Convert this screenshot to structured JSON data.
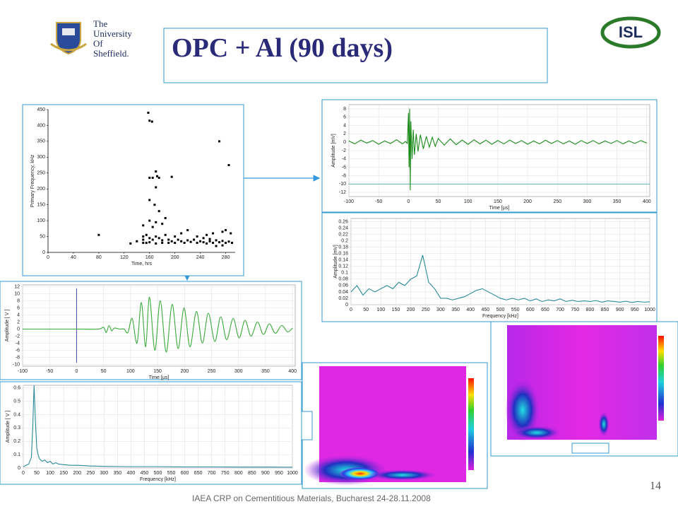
{
  "header": {
    "title": "OPC + Al (90 days)",
    "logo_lines": [
      "The",
      "University",
      "Of",
      "Sheffield."
    ],
    "right_logo": "ISL"
  },
  "footer": {
    "text": "IAEA CRP on Cementitious Materials, Bucharest 24-28.11.2008",
    "page": "14"
  },
  "chart_data": [
    {
      "type": "scatter",
      "xlabel": "Time, hrs",
      "ylabel": "Primary Frequency, kHz",
      "color": "#000000",
      "xlim": [
        0,
        295
      ],
      "xticks": [
        0,
        40,
        80,
        120,
        160,
        200,
        240,
        280
      ],
      "ylim": [
        0,
        450
      ],
      "yticks": [
        0,
        50,
        100,
        150,
        200,
        250,
        300,
        350,
        400,
        450
      ],
      "grid": false,
      "x": [
        80,
        130,
        140,
        150,
        155,
        158,
        160,
        164,
        170,
        172,
        160,
        165,
        175,
        195,
        170,
        160,
        168,
        175,
        185,
        160,
        170,
        180,
        150,
        165,
        210,
        220,
        235,
        250,
        270,
        285,
        260,
        275,
        280,
        288,
        150,
        155,
        160,
        165,
        170,
        175,
        180,
        185,
        190,
        195,
        200,
        205,
        210,
        215,
        220,
        225,
        230,
        235,
        240,
        245,
        250,
        255,
        260,
        265,
        270,
        275,
        280,
        285,
        290,
        150,
        160,
        170,
        180,
        190,
        200,
        245,
        255,
        265,
        275
      ],
      "y": [
        55,
        28,
        35,
        40,
        30,
        440,
        415,
        412,
        255,
        240,
        235,
        235,
        235,
        238,
        205,
        165,
        150,
        130,
        108,
        100,
        95,
        90,
        85,
        80,
        60,
        70,
        50,
        55,
        350,
        275,
        60,
        65,
        70,
        60,
        50,
        55,
        45,
        40,
        50,
        45,
        38,
        55,
        40,
        35,
        50,
        40,
        35,
        30,
        38,
        33,
        40,
        30,
        35,
        32,
        28,
        35,
        30,
        38,
        32,
        36,
        30,
        34,
        30,
        30,
        32,
        28,
        30,
        30,
        30,
        45,
        42,
        20,
        22
      ]
    },
    {
      "type": "line",
      "xlabel": "Time [µs]",
      "ylabel": "Amplitude [mV]",
      "color": "#1a8a1a",
      "grid": true,
      "xlim": [
        -100,
        405
      ],
      "xticks": [
        -100,
        -50,
        0,
        50,
        100,
        150,
        200,
        250,
        300,
        350,
        400
      ],
      "ylim": [
        -13,
        9
      ],
      "yticks": [
        -12,
        -10,
        -8,
        -6,
        -4,
        -2,
        0,
        2,
        4,
        6,
        8
      ],
      "reference_line": -10,
      "reference_color": "#2a9a9a",
      "x": [
        -100,
        -90,
        -80,
        -70,
        -60,
        -50,
        -40,
        -30,
        -20,
        -10,
        -5,
        -2,
        0,
        1,
        2,
        3,
        4,
        6,
        8,
        10,
        13,
        16,
        20,
        25,
        30,
        35,
        40,
        45,
        50,
        60,
        70,
        80,
        90,
        100,
        110,
        120,
        130,
        140,
        150,
        160,
        170,
        180,
        190,
        200,
        210,
        220,
        230,
        240,
        250,
        260,
        270,
        280,
        290,
        300,
        310,
        320,
        330,
        340,
        350,
        360,
        370,
        380,
        390,
        400
      ],
      "values": [
        0.3,
        -0.4,
        0.5,
        -0.2,
        0.4,
        -0.5,
        0.3,
        -0.3,
        0.6,
        -0.4,
        0.2,
        -0.3,
        7,
        -6,
        8,
        -11.5,
        5,
        -4,
        3,
        -3,
        2,
        -2.2,
        1.8,
        -1.6,
        1.4,
        -1.2,
        1.2,
        -1,
        0.9,
        -0.7,
        0.8,
        -0.6,
        0.5,
        -0.5,
        0.6,
        -0.4,
        0.5,
        -0.5,
        0.4,
        -0.4,
        0.5,
        -0.3,
        0.4,
        -0.5,
        0.3,
        -0.4,
        0.5,
        -0.3,
        0.4,
        -0.4,
        0.3,
        -0.5,
        0.4,
        -0.3,
        0.4,
        -0.4,
        0.3,
        -0.3,
        0.4,
        -0.4,
        0.3,
        -0.3,
        0.4,
        -0.2
      ]
    },
    {
      "type": "line",
      "xlabel": "Frequency [kHz]",
      "ylabel": "Amplitude [mV]",
      "color": "#2a8a9a",
      "grid": true,
      "xlim": [
        0,
        1000
      ],
      "xticks": [
        0,
        50,
        100,
        150,
        200,
        250,
        300,
        350,
        400,
        450,
        500,
        550,
        600,
        650,
        700,
        750,
        800,
        850,
        900,
        950,
        1000
      ],
      "ylim": [
        0,
        0.27
      ],
      "yticks": [
        0,
        0.02,
        0.04,
        0.06,
        0.08,
        0.1,
        0.12,
        0.14,
        0.16,
        0.18,
        0.2,
        0.22,
        0.24,
        0.26
      ],
      "x": [
        0,
        20,
        40,
        60,
        80,
        100,
        120,
        140,
        160,
        180,
        200,
        220,
        240,
        260,
        280,
        300,
        320,
        340,
        360,
        380,
        400,
        420,
        440,
        460,
        480,
        500,
        520,
        540,
        560,
        580,
        600,
        620,
        640,
        660,
        680,
        700,
        720,
        740,
        760,
        780,
        800,
        820,
        840,
        860,
        880,
        900,
        920,
        940,
        960,
        980,
        1000
      ],
      "values": [
        0.04,
        0.06,
        0.03,
        0.05,
        0.04,
        0.05,
        0.06,
        0.05,
        0.07,
        0.06,
        0.08,
        0.09,
        0.155,
        0.07,
        0.05,
        0.02,
        0.02,
        0.015,
        0.02,
        0.025,
        0.035,
        0.045,
        0.05,
        0.04,
        0.03,
        0.02,
        0.015,
        0.02,
        0.015,
        0.02,
        0.012,
        0.018,
        0.01,
        0.015,
        0.012,
        0.018,
        0.01,
        0.014,
        0.01,
        0.012,
        0.01,
        0.013,
        0.008,
        0.012,
        0.01,
        0.008,
        0.011,
        0.007,
        0.01,
        0.008,
        0.009
      ]
    },
    {
      "type": "line",
      "xlabel": "Time [µs]",
      "ylabel": "Amplitude [ V ]",
      "color": "#3aa83a",
      "grid": true,
      "smooth": true,
      "xlim": [
        -100,
        405
      ],
      "xticks": [
        -100,
        -50,
        0,
        50,
        100,
        150,
        200,
        250,
        300,
        350,
        400
      ],
      "ylim": [
        -10.5,
        12.5
      ],
      "yticks": [
        -10,
        -8,
        -6,
        -4,
        -2,
        0,
        2,
        4,
        6,
        8,
        10,
        12
      ],
      "x": [
        -100,
        -50,
        0,
        40,
        50,
        55,
        60,
        65,
        70,
        80,
        88,
        95,
        103,
        112,
        120,
        128,
        135,
        145,
        155,
        166,
        177,
        188,
        199,
        210,
        222,
        233,
        244,
        256,
        267,
        278,
        290,
        301,
        312,
        323,
        335,
        346,
        357,
        368,
        380,
        391,
        400
      ],
      "values": [
        0,
        0,
        0,
        0,
        0.5,
        -1,
        1,
        -0.5,
        0.3,
        0,
        0,
        -1,
        3,
        -4,
        7.5,
        -5,
        9,
        -6,
        8,
        -6.5,
        7,
        -5.5,
        6,
        -5,
        5,
        -4,
        4.5,
        -3.5,
        3.5,
        -3,
        3,
        -2.5,
        2.5,
        -2,
        2,
        -1.5,
        1.5,
        -1.2,
        1,
        -0.8,
        0.3
      ]
    },
    {
      "type": "line",
      "xlabel": "Frequency [kHz]",
      "ylabel": "Amplitude [ V ]",
      "color": "#2a8a9a",
      "grid": true,
      "xlim": [
        0,
        1000
      ],
      "xticks": [
        0,
        50,
        100,
        150,
        200,
        250,
        300,
        350,
        400,
        450,
        500,
        550,
        600,
        650,
        700,
        750,
        800,
        850,
        900,
        950,
        1000
      ],
      "ylim": [
        0,
        0.62
      ],
      "yticks": [
        0,
        0.1,
        0.2,
        0.3,
        0.4,
        0.5,
        0.6
      ],
      "x": [
        0,
        10,
        20,
        30,
        35,
        40,
        45,
        50,
        55,
        60,
        70,
        80,
        90,
        100,
        110,
        120,
        130,
        150,
        175,
        200,
        250,
        300,
        400,
        500,
        600,
        700,
        800,
        900,
        1000
      ],
      "values": [
        0.01,
        0.02,
        0.03,
        0.08,
        0.3,
        0.62,
        0.35,
        0.15,
        0.1,
        0.07,
        0.05,
        0.06,
        0.04,
        0.05,
        0.03,
        0.04,
        0.03,
        0.025,
        0.02,
        0.02,
        0.015,
        0.012,
        0.01,
        0.01,
        0.008,
        0.008,
        0.007,
        0.007,
        0.006
      ]
    }
  ]
}
